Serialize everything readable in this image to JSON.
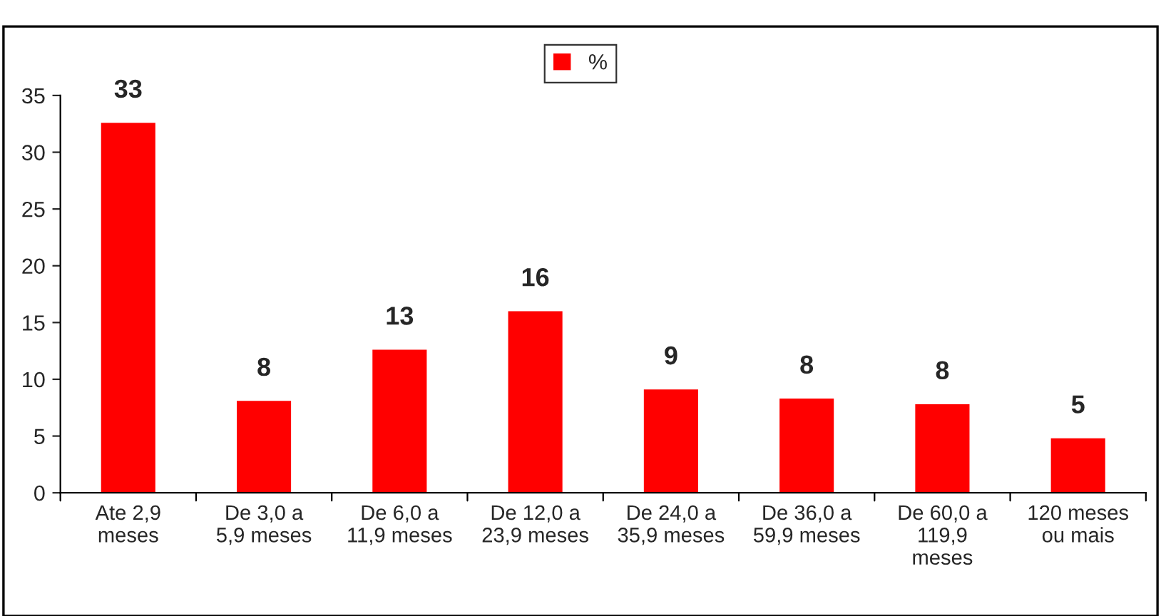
{
  "chart_data": {
    "type": "bar",
    "categories": [
      "Ate 2,9\nmeses",
      "De 3,0 a\n5,9 meses",
      "De 6,0 a\n11,9 meses",
      "De 12,0 a\n23,9 meses",
      "De 24,0 a\n35,9 meses",
      "De 36,0 a\n59,9 meses",
      "De 60,0 a\n119,9\nmeses",
      "120 meses\nou mais"
    ],
    "series": [
      {
        "name": "%",
        "color": "#ff0000",
        "values": [
          32.6,
          8.1,
          12.6,
          16.0,
          9.1,
          8.3,
          7.8,
          4.8
        ],
        "value_labels": [
          "33",
          "8",
          "13",
          "16",
          "9",
          "8",
          "8",
          "5"
        ]
      }
    ],
    "ylim": [
      0,
      35
    ],
    "yticks": [
      0,
      5,
      10,
      15,
      20,
      25,
      30,
      35
    ],
    "grid": false,
    "legend": "top"
  }
}
